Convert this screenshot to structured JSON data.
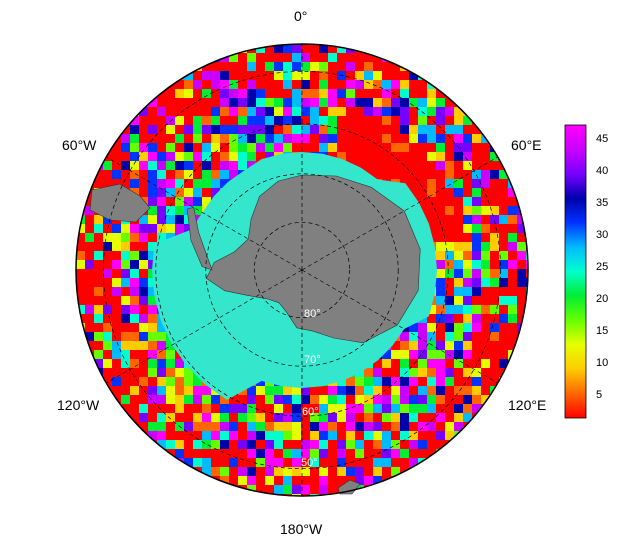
{
  "map": {
    "projection": "south-polar-stereographic",
    "longitude_labels": [
      "0°",
      "60°E",
      "120°E",
      "180°W",
      "120°W",
      "60°W"
    ],
    "latitude_labels": [
      "80°",
      "70°",
      "60°",
      "50°"
    ],
    "latitude_circles_deg": [
      80,
      70,
      60,
      50
    ],
    "colors": {
      "land": "#808080",
      "sea_ice": "#33e6cc",
      "grid": "#000000",
      "background": "#ffffff"
    }
  },
  "colorbar": {
    "ticks": [
      "5",
      "10",
      "15",
      "20",
      "25",
      "30",
      "35",
      "40",
      "45"
    ],
    "min": 1,
    "max": 48,
    "colors": [
      "#ff0000",
      "#ff6600",
      "#ffcc00",
      "#e6ff00",
      "#66ff00",
      "#00ee33",
      "#00ffcc",
      "#00bbff",
      "#0033ff",
      "#0000aa",
      "#7700ff",
      "#cc00ff",
      "#ff00ff"
    ]
  }
}
